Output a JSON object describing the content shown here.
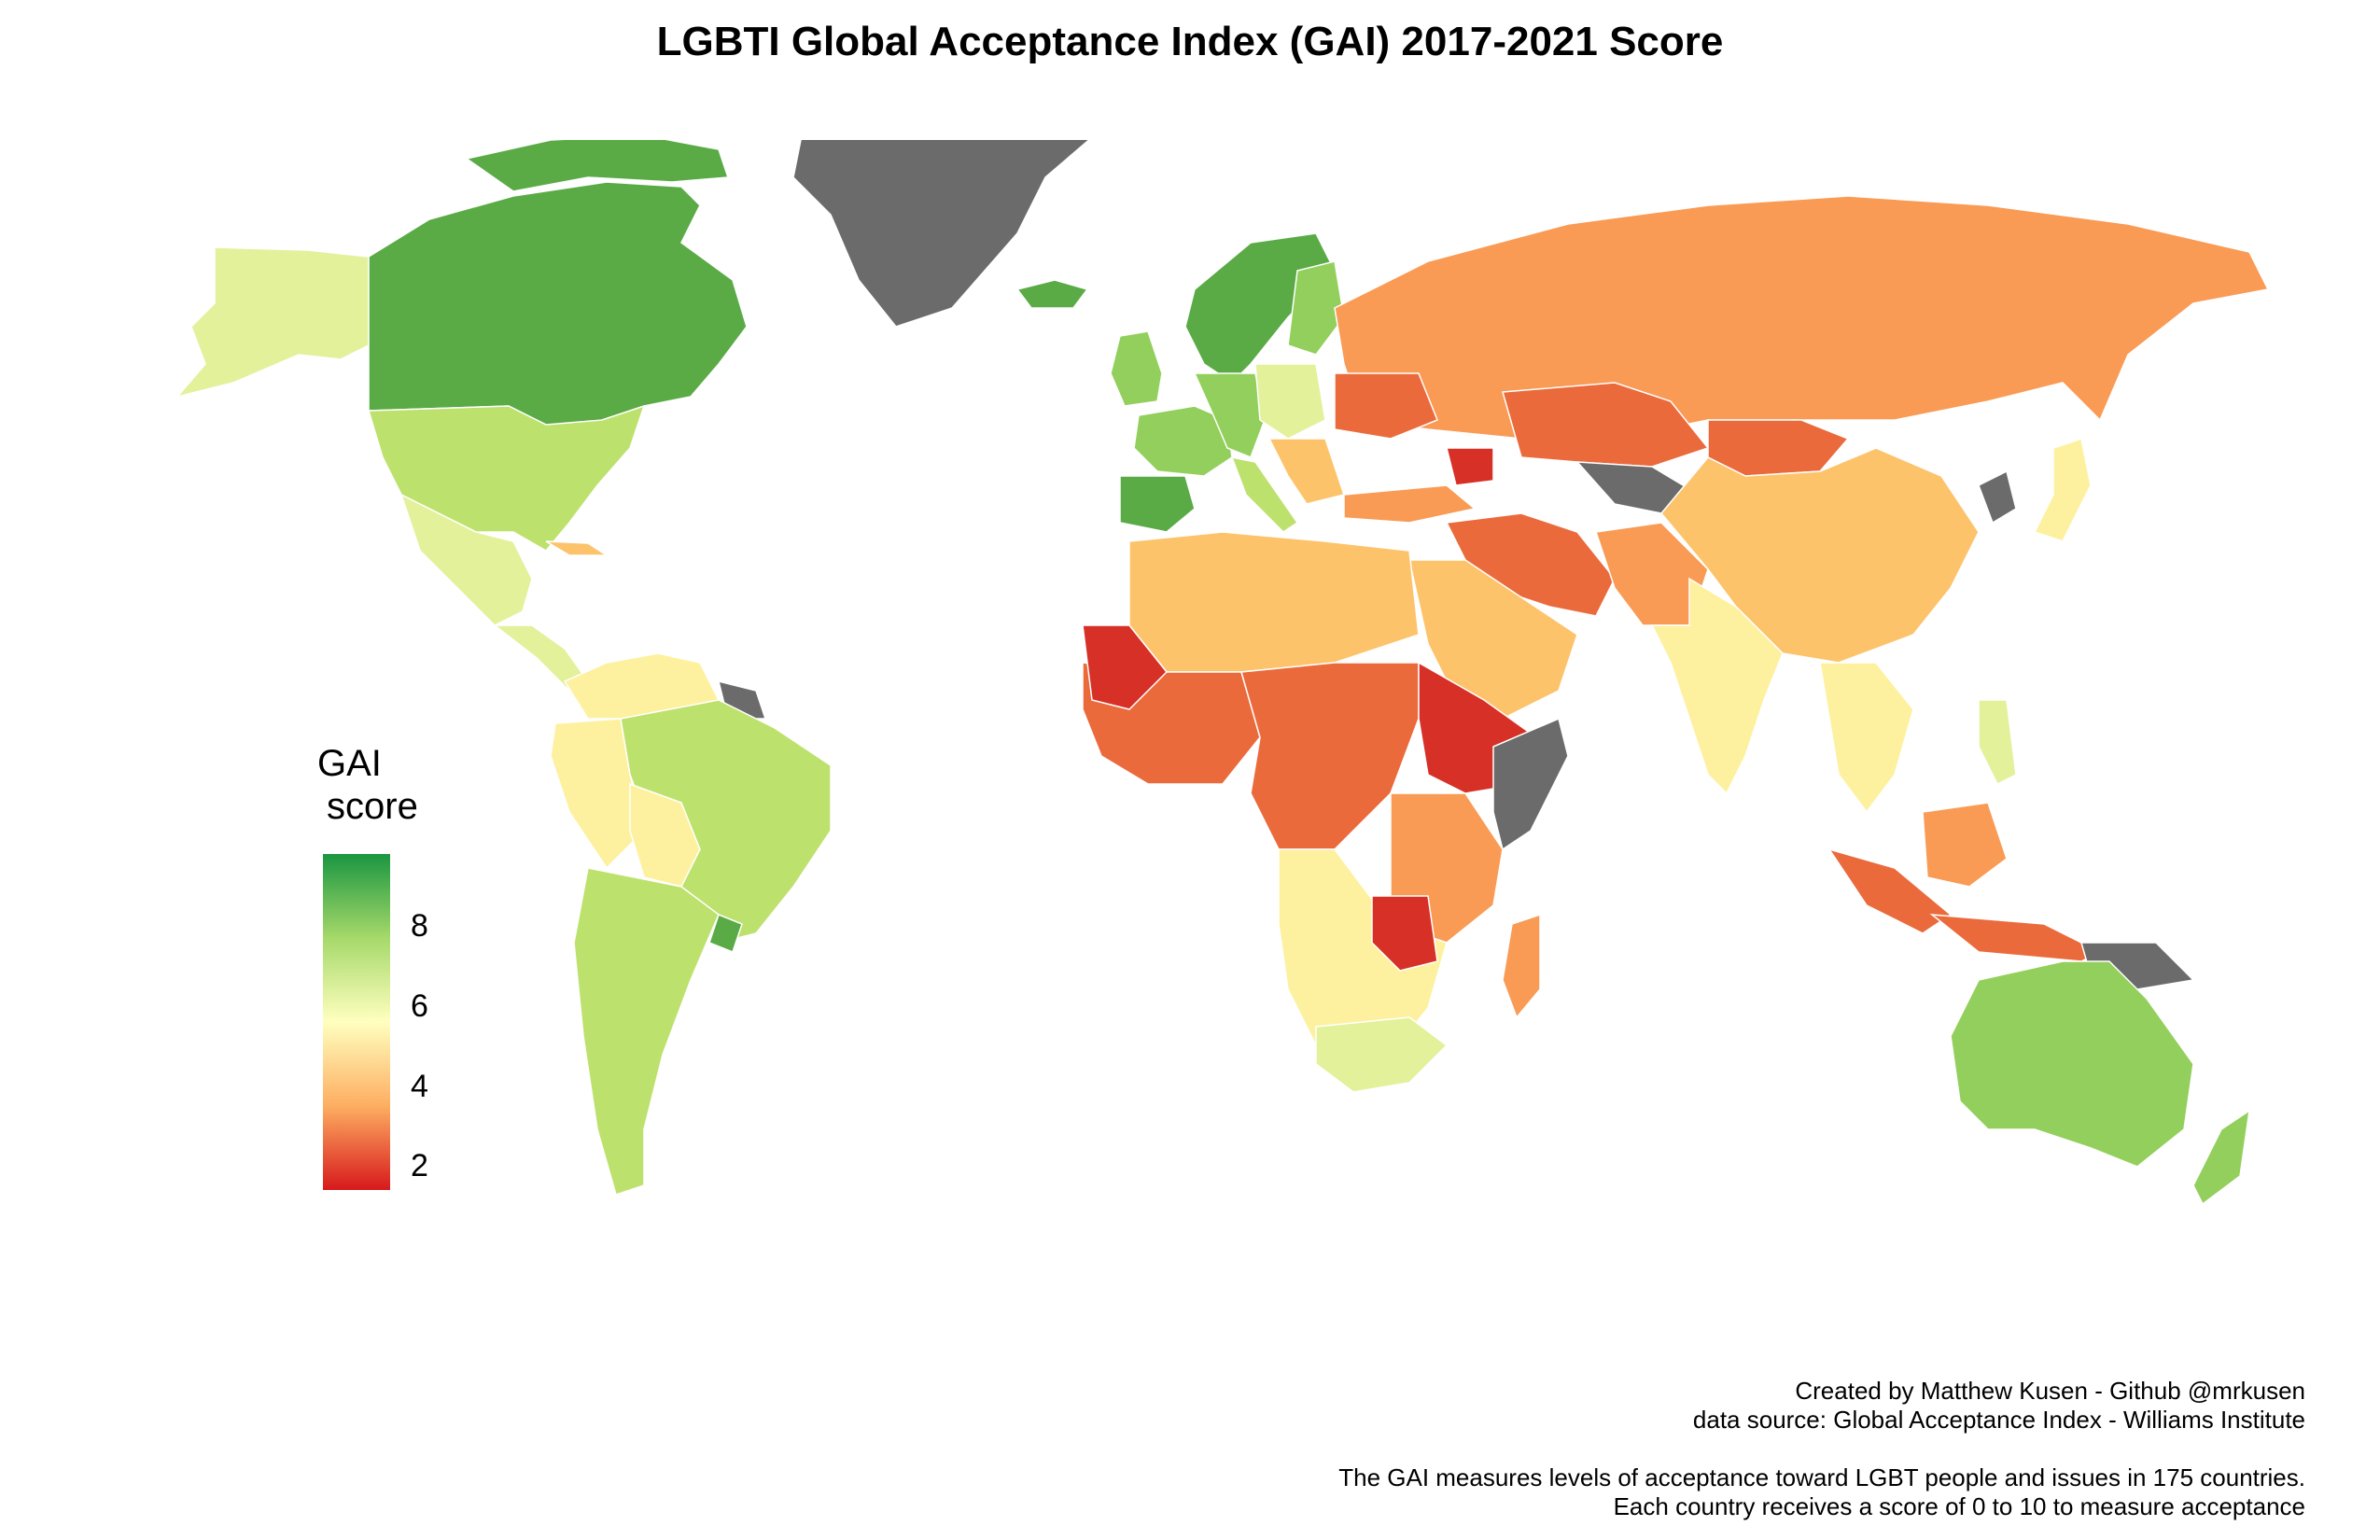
{
  "title": "LGBTI Global Acceptance Index (GAI) 2017-2021 Score",
  "legend": {
    "title_line1": "GAI",
    "title_line2": "score",
    "ticks": [
      {
        "label": "8",
        "value": 8
      },
      {
        "label": "6",
        "value": 6
      },
      {
        "label": "4",
        "value": 4
      },
      {
        "label": "2",
        "value": 2
      }
    ],
    "range": [
      1.4,
      9.8
    ],
    "gradient": [
      "#d7191c",
      "#fdae61",
      "#ffffbf",
      "#a6d96a",
      "#1a9641"
    ],
    "missing_color": "#6b6b6b"
  },
  "caption": {
    "line1": "Created by Matthew Kusen - Github @mrkusen",
    "line2": "data source: Global Acceptance Index - Williams Institute",
    "line3": "The GAI measures levels of acceptance toward LGBT people and issues in 175 countries.",
    "line4": "Each country receives a score of 0 to 10 to measure acceptance"
  },
  "colors": {
    "high": "#5aab46",
    "upper": "#93cf5c",
    "mid_high": "#bde16d",
    "mid": "#e3f19b",
    "neutral": "#fdf1a0",
    "mid_low": "#fdc36b",
    "low": "#f99b55",
    "lower": "#eb6a3c",
    "lowest": "#d73027",
    "missing": "#6b6b6b"
  }
}
